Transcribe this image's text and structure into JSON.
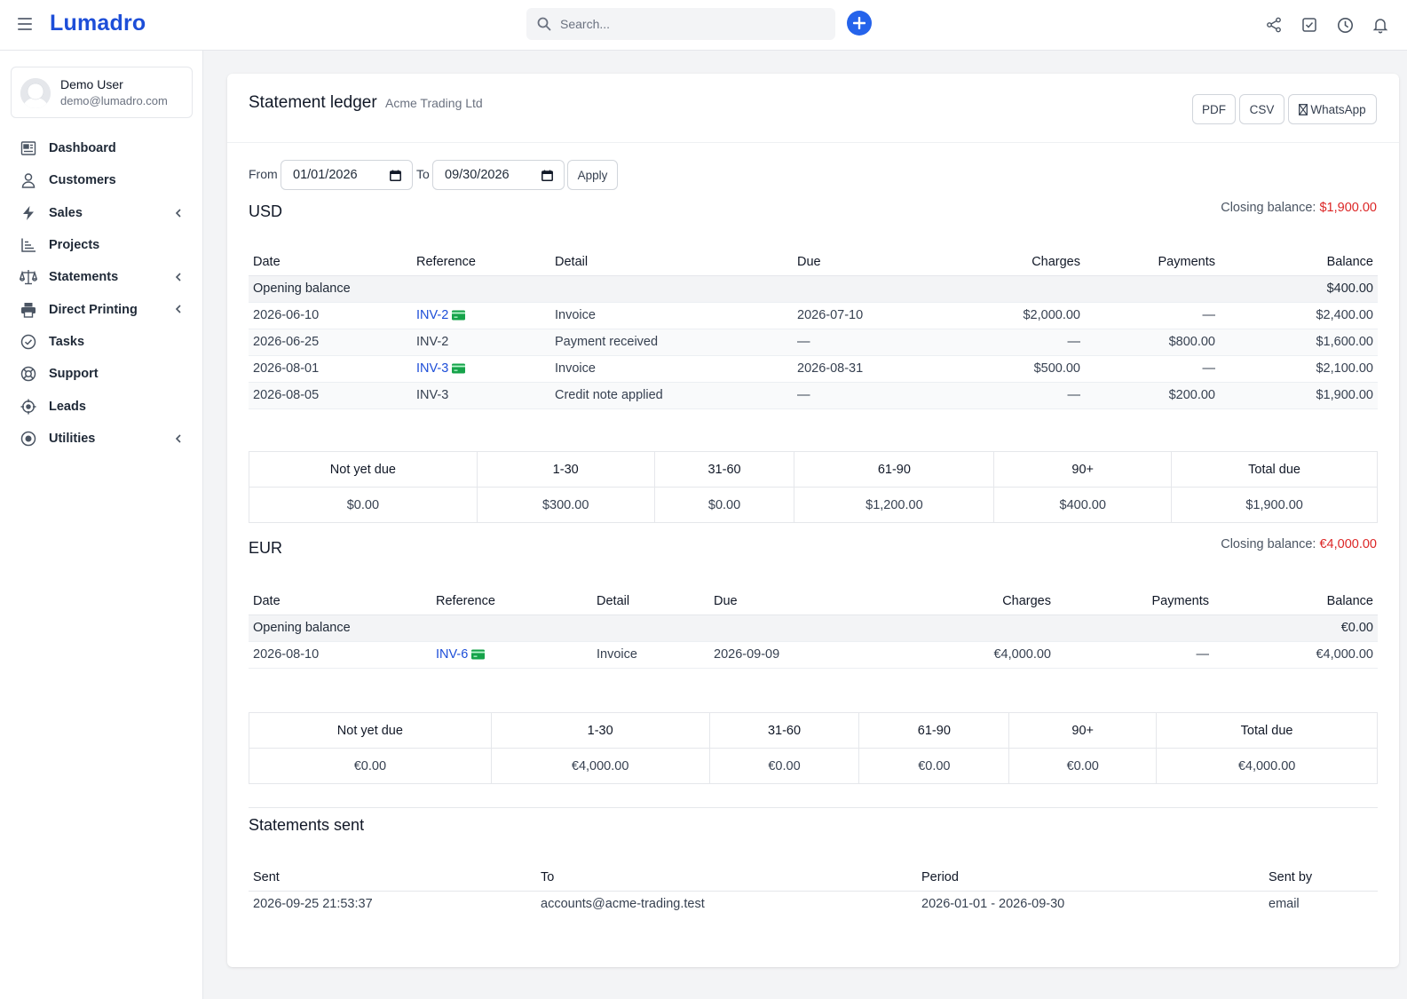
{
  "app": {
    "brand": "Lumadro"
  },
  "search": {
    "placeholder": "Search..."
  },
  "top_icons": [
    "share-icon",
    "checkbox-icon",
    "clock-icon",
    "bell-icon"
  ],
  "user": {
    "name": "Demo User",
    "email": "demo@lumadro.com"
  },
  "sidebar": {
    "items": [
      {
        "label": "Dashboard",
        "icon": "dashboard-icon",
        "submenu": false
      },
      {
        "label": "Customers",
        "icon": "user-icon",
        "submenu": false
      },
      {
        "label": "Sales",
        "icon": "bolt-icon",
        "submenu": true
      },
      {
        "label": "Projects",
        "icon": "chart-icon",
        "submenu": false
      },
      {
        "label": "Statements",
        "icon": "scale-icon",
        "submenu": true
      },
      {
        "label": "Direct Printing",
        "icon": "printer-icon",
        "submenu": true
      },
      {
        "label": "Tasks",
        "icon": "check-circle-icon",
        "submenu": false
      },
      {
        "label": "Support",
        "icon": "lifebuoy-icon",
        "submenu": false
      },
      {
        "label": "Leads",
        "icon": "crosshair-icon",
        "submenu": false
      },
      {
        "label": "Utilities",
        "icon": "dot-circle-icon",
        "submenu": true
      }
    ]
  },
  "header": {
    "title": "Statement ledger",
    "customer": "Acme Trading Ltd",
    "pdf_label": "PDF",
    "csv_label": "CSV",
    "whatsapp_label": "WhatsApp"
  },
  "filter": {
    "from_label": "From",
    "from_value": "01/01/2026",
    "to_label": "To",
    "to_value": "09/30/2026",
    "apply_label": "Apply"
  },
  "ledger_columns": [
    "Date",
    "Reference",
    "Detail",
    "Due",
    "Charges",
    "Payments",
    "Balance"
  ],
  "aging_columns": [
    "Not yet due",
    "1-30",
    "31-60",
    "61-90",
    "90+",
    "Total due"
  ],
  "closing_label": "Closing balance:",
  "currencies": {
    "usd": {
      "code": "USD",
      "closing_balance": "$1,900.00",
      "opening_label": "Opening balance",
      "opening_balance": "$400.00",
      "rows": [
        {
          "date": "2026-06-10",
          "ref": "INV-2",
          "linked": true,
          "detail": "Invoice",
          "due": "2026-07-10",
          "charges": "$2,000.00",
          "payments": "—",
          "balance": "$2,400.00"
        },
        {
          "date": "2026-06-25",
          "ref": "INV-2",
          "linked": false,
          "detail": "Payment received",
          "due": "—",
          "charges": "—",
          "payments": "$800.00",
          "balance": "$1,600.00"
        },
        {
          "date": "2026-08-01",
          "ref": "INV-3",
          "linked": true,
          "detail": "Invoice",
          "due": "2026-08-31",
          "charges": "$500.00",
          "payments": "—",
          "balance": "$2,100.00"
        },
        {
          "date": "2026-08-05",
          "ref": "INV-3",
          "linked": false,
          "detail": "Credit note applied",
          "due": "—",
          "charges": "—",
          "payments": "$200.00",
          "balance": "$1,900.00"
        }
      ],
      "aging": [
        "$0.00",
        "$300.00",
        "$0.00",
        "$1,200.00",
        "$400.00",
        "$1,900.00"
      ]
    },
    "eur": {
      "code": "EUR",
      "closing_balance": "€4,000.00",
      "opening_label": "Opening balance",
      "opening_balance": "€0.00",
      "rows": [
        {
          "date": "2026-08-10",
          "ref": "INV-6",
          "linked": true,
          "detail": "Invoice",
          "due": "2026-09-09",
          "charges": "€4,000.00",
          "payments": "—",
          "balance": "€4,000.00"
        }
      ],
      "aging": [
        "€0.00",
        "€4,000.00",
        "€0.00",
        "€0.00",
        "€0.00",
        "€4,000.00"
      ]
    }
  },
  "statements_sent": {
    "title": "Statements sent",
    "columns": [
      "Sent",
      "To",
      "Period",
      "Sent by"
    ],
    "rows": [
      {
        "sent": "2026-09-25 21:53:37",
        "to": "accounts@acme-trading.test",
        "period": "2026-01-01 - 2026-09-30",
        "by": "email"
      }
    ]
  },
  "colors": {
    "brand": "#1d4ed8",
    "accent": "#2563eb",
    "negative": "#dc2626",
    "card_icon": "#16a34a"
  }
}
